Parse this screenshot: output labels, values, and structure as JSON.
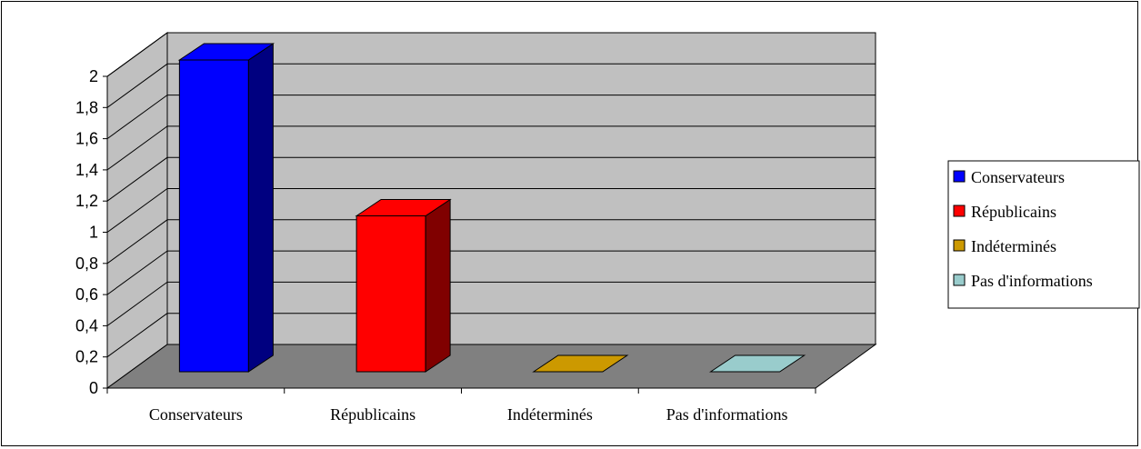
{
  "chart_data": {
    "type": "bar",
    "categories": [
      "Conservateurs",
      "Républicains",
      "Indéterminés",
      "Pas d'informations"
    ],
    "values": [
      2,
      1,
      0,
      0
    ],
    "ylim": [
      0,
      2
    ],
    "yticks": [
      "0",
      "0,2",
      "0,4",
      "0,6",
      "0,8",
      "1",
      "1,2",
      "1,4",
      "1,6",
      "1,8",
      "2"
    ],
    "grid": true,
    "legend_position": "right",
    "legend": [
      "Conservateurs",
      "Républicains",
      "Indéterminés",
      "Pas d'informations"
    ],
    "colors": [
      "#0000FF",
      "#FF0000",
      "#CC9900",
      "#99CCCC"
    ],
    "dark_colors": [
      "#000080",
      "#800000",
      "#806000",
      "#4d8080"
    ],
    "background": {
      "back_wall": "#C0C0C0",
      "side_wall": "#C0C0C0",
      "floor": "#808080"
    }
  }
}
